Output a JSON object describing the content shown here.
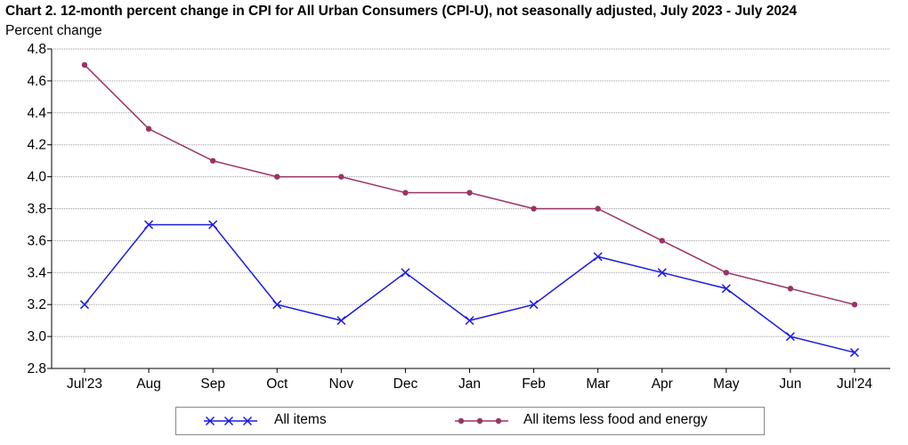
{
  "title": "Chart 2. 12-month percent change in CPI for All Urban Consumers (CPI-U), not seasonally adjusted, July 2023 - July 2024",
  "ylabel": "Percent change",
  "chart_data": {
    "type": "line",
    "title": "Chart 2. 12-month percent change in CPI for All Urban Consumers (CPI-U), not seasonally adjusted, July 2023 - July 2024",
    "ylabel": "Percent change",
    "xlabel": "",
    "categories": [
      "Jul'23",
      "Aug",
      "Sep",
      "Oct",
      "Nov",
      "Dec",
      "Jan",
      "Feb",
      "Mar",
      "Apr",
      "May",
      "Jun",
      "Jul'24"
    ],
    "ylim": [
      2.8,
      4.8
    ],
    "yticks": [
      "2.8",
      "3.0",
      "3.2",
      "3.4",
      "3.6",
      "3.8",
      "4.0",
      "4.2",
      "4.4",
      "4.6",
      "4.8"
    ],
    "grid": true,
    "legend_position": "bottom",
    "series": [
      {
        "name": "All items",
        "color": "#1a1ae6",
        "marker": "x",
        "values": [
          3.2,
          3.7,
          3.7,
          3.2,
          3.1,
          3.4,
          3.1,
          3.2,
          3.5,
          3.4,
          3.3,
          3.0,
          2.9
        ]
      },
      {
        "name": "All items less food and energy",
        "color": "#993366",
        "marker": "circle",
        "values": [
          4.7,
          4.3,
          4.1,
          4.0,
          4.0,
          3.9,
          3.9,
          3.8,
          3.8,
          3.6,
          3.4,
          3.3,
          3.2
        ]
      }
    ]
  }
}
